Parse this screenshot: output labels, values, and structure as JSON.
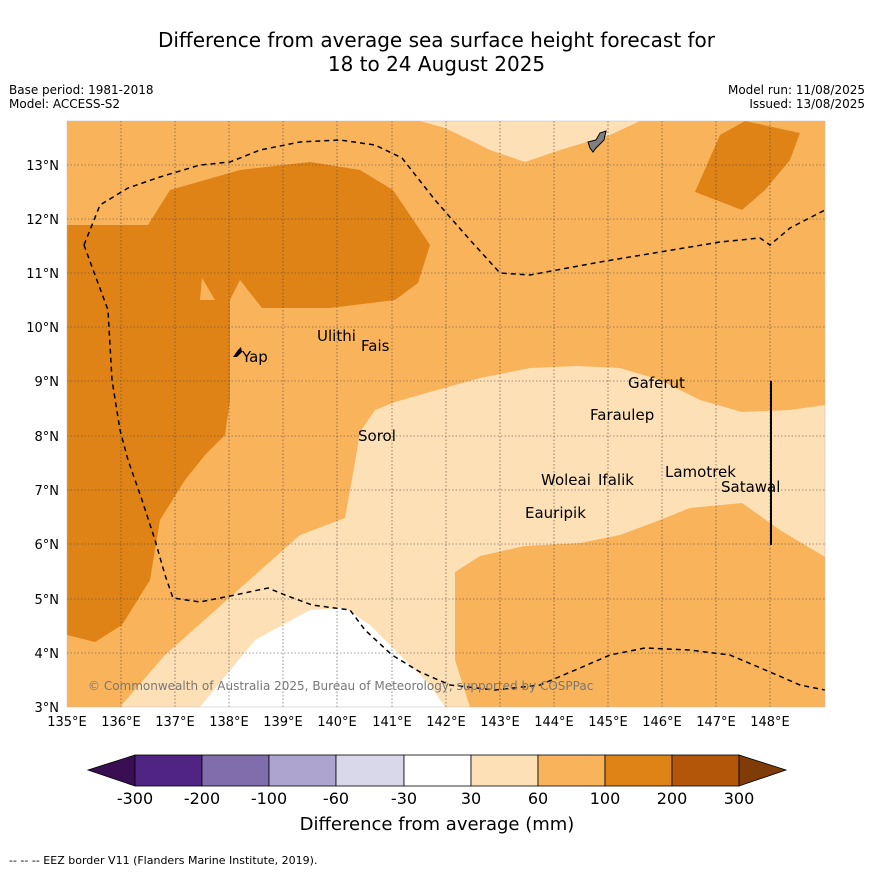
{
  "title": {
    "line1": "Difference from average sea surface height forecast for",
    "line2": "18 to 24 August 2025"
  },
  "info": {
    "base_period": "Base period: 1981-2018",
    "model": "Model: ACCESS-S2",
    "model_run": "Model run: 11/08/2025",
    "issued": "Issued: 13/08/2025"
  },
  "map": {
    "lon_ticks": [
      "135°E",
      "136°E",
      "137°E",
      "138°E",
      "139°E",
      "140°E",
      "141°E",
      "142°E",
      "143°E",
      "144°E",
      "145°E",
      "146°E",
      "147°E",
      "148°E"
    ],
    "lat_ticks": [
      "3°N",
      "4°N",
      "5°N",
      "6°N",
      "7°N",
      "8°N",
      "9°N",
      "10°N",
      "11°N",
      "12°N",
      "13°N"
    ],
    "places": [
      "Yap",
      "Ulithi",
      "Fais",
      "Sorol",
      "Gaferut",
      "Faraulep",
      "Woleai",
      "Ifalik",
      "Lamotrek",
      "Satawal",
      "Eauripik"
    ],
    "credit": "© Commonwealth of Australia 2025, Bureau of Meteorology, supported by COSPPac",
    "colors": {
      "neg300": "#3a0e52",
      "neg200": "#4f2482",
      "neg100": "#7f6eab",
      "neg60": "#ada5cf",
      "neg30": "#d8d8ea",
      "zero": "#ffffff",
      "pos30": "#fde0b6",
      "pos60": "#f9b45b",
      "pos100": "#e08316",
      "pos200": "#b35609",
      "pos300": "#7f3b08"
    }
  },
  "colorbar": {
    "labels": [
      "-300",
      "-200",
      "-100",
      "-60",
      "-30",
      "30",
      "60",
      "100",
      "200",
      "300"
    ],
    "title": "Difference from average (mm)"
  },
  "footer": "--  --  -- EEZ border V11 (Flanders Marine Institute, 2019)."
}
